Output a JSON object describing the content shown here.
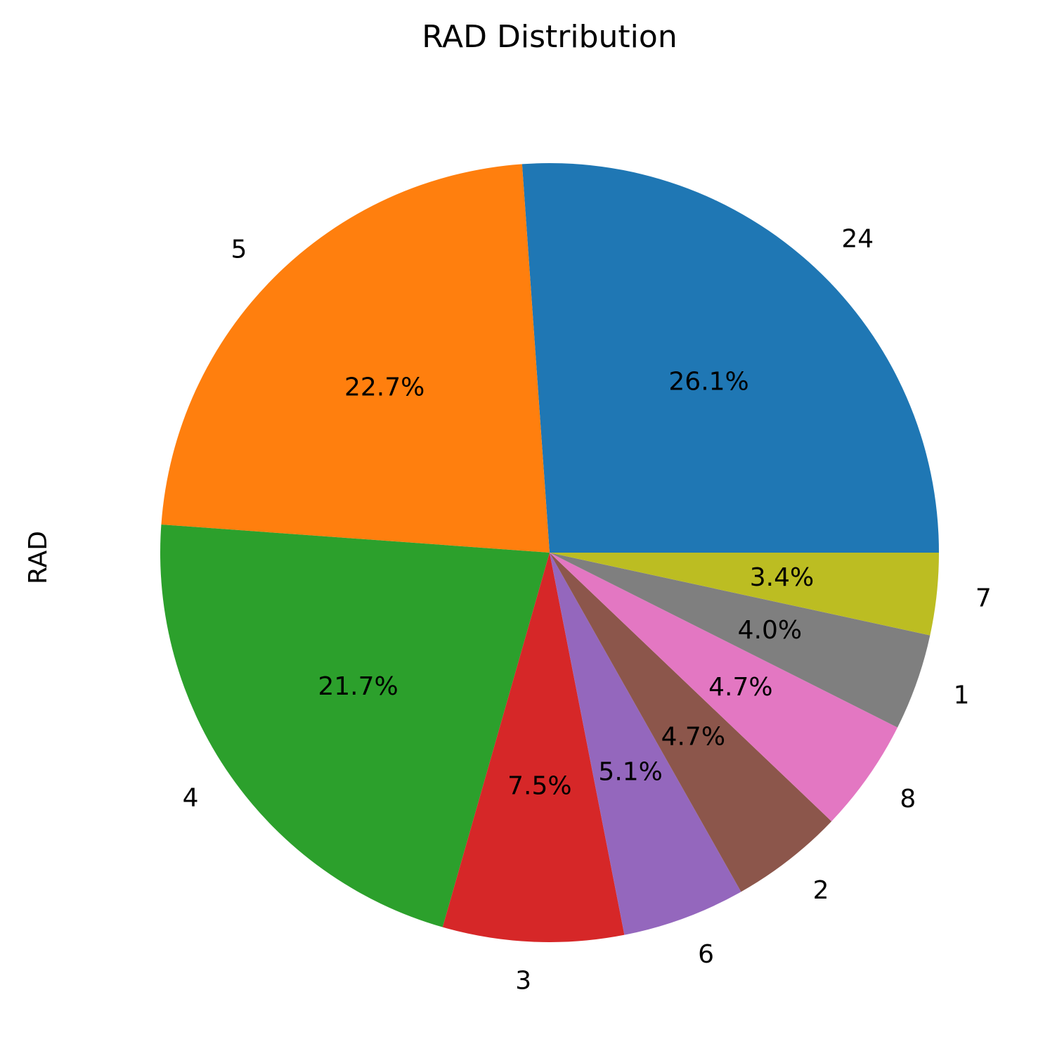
{
  "chart_data": {
    "type": "pie",
    "title": "RAD Distribution",
    "ylabel": "RAD",
    "categories": [
      "24",
      "5",
      "4",
      "3",
      "6",
      "2",
      "8",
      "1",
      "7"
    ],
    "values": [
      26.1,
      22.7,
      21.7,
      7.5,
      5.1,
      4.7,
      4.7,
      4.0,
      3.4
    ],
    "value_labels": [
      "26.1%",
      "22.7%",
      "21.7%",
      "7.5%",
      "5.1%",
      "4.7%",
      "4.7%",
      "4.0%",
      "3.4%"
    ],
    "colors": [
      "#1f77b4",
      "#ff7f0e",
      "#2ca02c",
      "#d62728",
      "#9467bd",
      "#8c564b",
      "#e377c2",
      "#7f7f7f",
      "#bcbd22"
    ],
    "start_angle": "0 degrees (3 o'clock), counterclockwise",
    "legend": "none"
  }
}
